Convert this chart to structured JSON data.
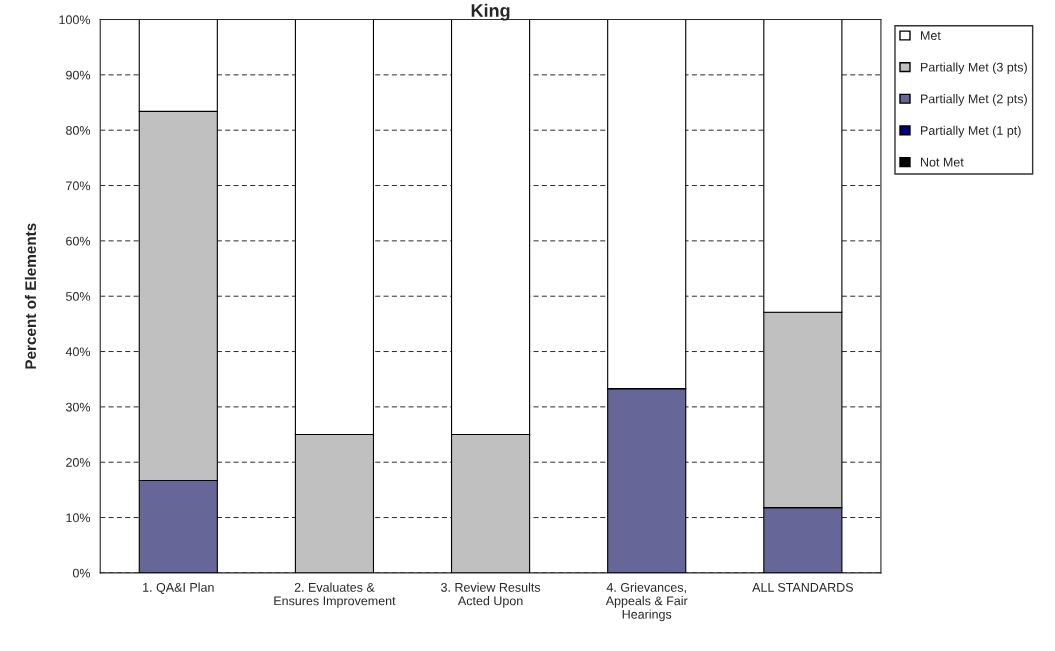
{
  "chart_data": {
    "type": "bar",
    "title": "King",
    "ylabel": "Percent of Elements",
    "categories": [
      "1. QA&I Plan",
      "2. Evaluates & Ensures Improvement",
      "3. Review Results Acted Upon",
      "4. Grievances, Appeals & Fair Hearings",
      "ALL STANDARDS"
    ],
    "stacked": true,
    "series": [
      {
        "name": "Not Met",
        "color": "#000000",
        "values": [
          0,
          0,
          0,
          0,
          0
        ]
      },
      {
        "name": "Partially Met (1 pt)",
        "color": "#000080",
        "values": [
          0,
          0,
          0,
          0,
          0
        ]
      },
      {
        "name": "Partially Met (2 pts)",
        "color": "#666699",
        "values": [
          16.7,
          0,
          0,
          33.3,
          11.8
        ]
      },
      {
        "name": "Partially Met (3 pts)",
        "color": "#c0c0c0",
        "values": [
          66.7,
          25,
          25,
          0,
          35.3
        ]
      },
      {
        "name": "Met",
        "color": "#ffffff",
        "values": [
          16.6,
          75,
          75,
          66.7,
          52.9
        ]
      }
    ],
    "ylim": [
      0,
      100
    ],
    "yticks": [
      {
        "value": 0,
        "label": "0%"
      },
      {
        "value": 10,
        "label": "10%"
      },
      {
        "value": 20,
        "label": "20%"
      },
      {
        "value": 30,
        "label": "30%"
      },
      {
        "value": 40,
        "label": "40%"
      },
      {
        "value": 50,
        "label": "50%"
      },
      {
        "value": 60,
        "label": "60%"
      },
      {
        "value": 70,
        "label": "70%"
      },
      {
        "value": 80,
        "label": "80%"
      },
      {
        "value": 90,
        "label": "90%"
      },
      {
        "value": 100,
        "label": "100%"
      }
    ],
    "grid": "y",
    "legend": "right"
  }
}
